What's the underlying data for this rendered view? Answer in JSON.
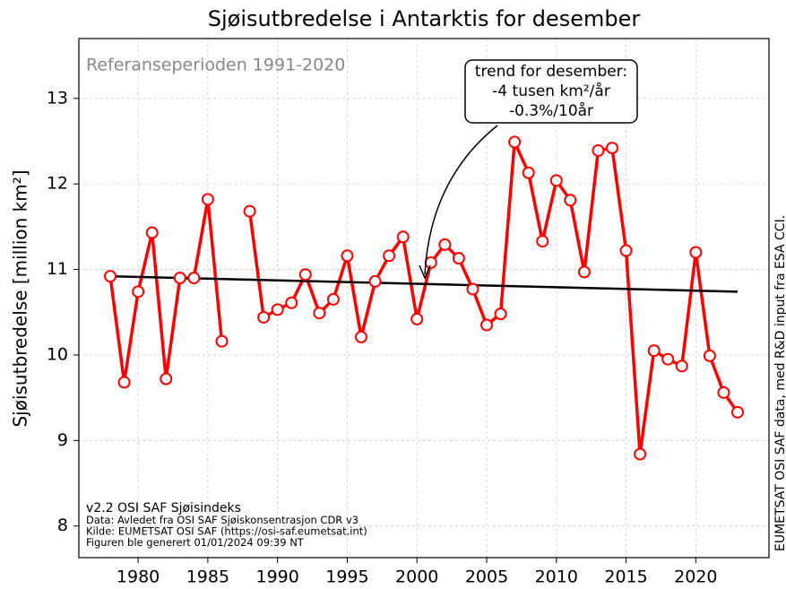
{
  "chart_data": {
    "type": "line",
    "title": "Sjøisutbredelse i Antarktis for desember",
    "y_label": "Sjøisutbredelse [million km²]",
    "reference_note": "Referanseperioden 1991-2020",
    "trend_box": [
      "trend for desember:",
      "-4 tusen km²/år",
      "-0.3%/10år"
    ],
    "side_note": "EUMETSAT OSI SAF data, med R&D input fra ESA CCI.",
    "footer_notes": [
      "v2.2 OSI SAF Sjøisindeks",
      "Data: Avledet fra OSI SAF Sjøiskonsentrasjon CDR v3",
      "Kilde: EUMETSAT OSI SAF (https://osi-saf.eumetsat.int)",
      "Figuren ble generert 01/01/2024 09:39 NT"
    ],
    "x": [
      1978,
      1979,
      1980,
      1981,
      1982,
      1983,
      1984,
      1985,
      1986,
      1987,
      1988,
      1989,
      1990,
      1991,
      1992,
      1993,
      1994,
      1995,
      1996,
      1997,
      1998,
      1999,
      2000,
      2001,
      2002,
      2003,
      2004,
      2005,
      2006,
      2007,
      2008,
      2009,
      2010,
      2011,
      2012,
      2013,
      2014,
      2015,
      2016,
      2017,
      2018,
      2019,
      2020,
      2021,
      2022,
      2023
    ],
    "series": [
      {
        "color": "#ff0000",
        "values": [
          10.92,
          9.68,
          10.74,
          11.43,
          9.72,
          10.9,
          10.9,
          11.82,
          10.16,
          null,
          11.68,
          10.44,
          10.53,
          10.61,
          10.94,
          10.49,
          10.65,
          11.16,
          10.21,
          10.86,
          11.16,
          11.38,
          10.42,
          11.08,
          11.29,
          11.13,
          10.77,
          10.35,
          10.48,
          12.49,
          12.13,
          11.33,
          12.04,
          11.81,
          10.97,
          12.39,
          12.42,
          11.22,
          8.84,
          10.05,
          9.95,
          9.87,
          11.2,
          9.99,
          9.56,
          9.33
        ]
      }
    ],
    "trend": {
      "color": "#000000",
      "x": [
        1978,
        2023
      ],
      "values": [
        10.92,
        10.74
      ]
    },
    "xlim": [
      1975.75,
      2025.25
    ],
    "ylim": [
      7.63,
      13.7
    ],
    "xticks": [
      1980,
      1985,
      1990,
      1995,
      2000,
      2005,
      2010,
      2015,
      2020
    ],
    "yticks": [
      8,
      9,
      10,
      11,
      12,
      13
    ],
    "grid": true
  }
}
